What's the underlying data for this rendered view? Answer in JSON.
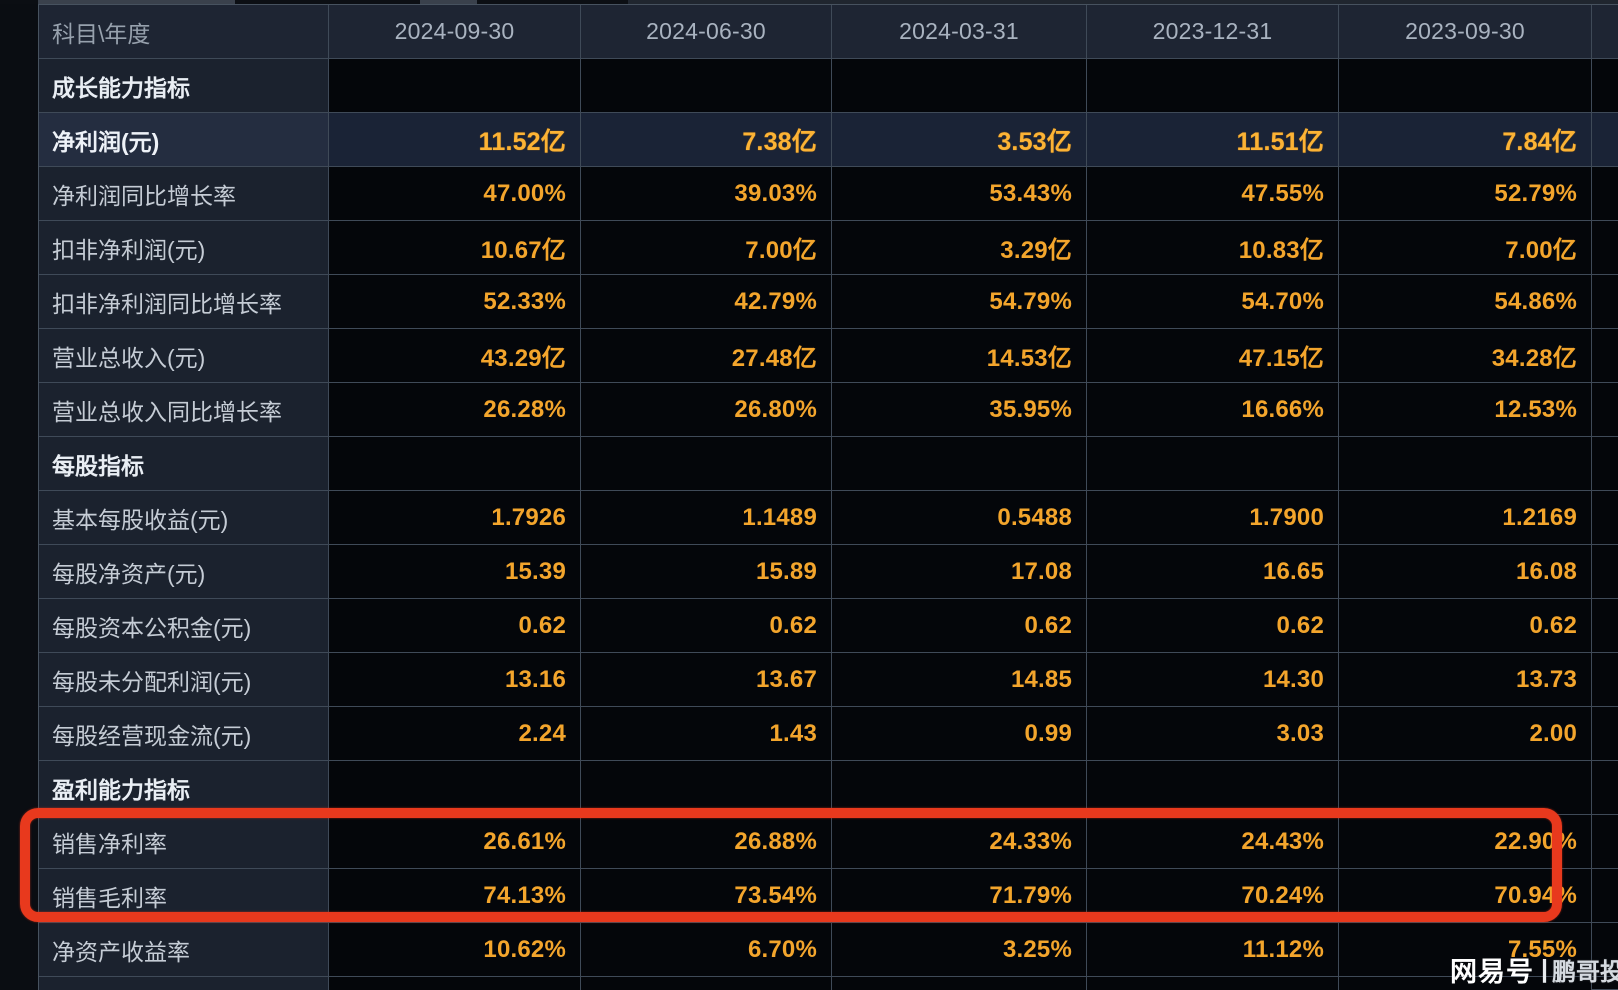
{
  "chart_data": {
    "type": "table",
    "columns": [
      "科目\\年度",
      "2024-09-30",
      "2024-06-30",
      "2024-03-31",
      "2023-12-31",
      "2023-09-30"
    ],
    "rows": [
      [
        "成长能力指标",
        "",
        "",
        "",
        "",
        ""
      ],
      [
        "净利润(元)",
        "11.52亿",
        "7.38亿",
        "3.53亿",
        "11.51亿",
        "7.84亿"
      ],
      [
        "净利润同比增长率",
        "47.00%",
        "39.03%",
        "53.43%",
        "47.55%",
        "52.79%"
      ],
      [
        "扣非净利润(元)",
        "10.67亿",
        "7.00亿",
        "3.29亿",
        "10.83亿",
        "7.00亿"
      ],
      [
        "扣非净利润同比增长率",
        "52.33%",
        "42.79%",
        "54.79%",
        "54.70%",
        "54.86%"
      ],
      [
        "营业总收入(元)",
        "43.29亿",
        "27.48亿",
        "14.53亿",
        "47.15亿",
        "34.28亿"
      ],
      [
        "营业总收入同比增长率",
        "26.28%",
        "26.80%",
        "35.95%",
        "16.66%",
        "12.53%"
      ],
      [
        "每股指标",
        "",
        "",
        "",
        "",
        ""
      ],
      [
        "基本每股收益(元)",
        "1.7926",
        "1.1489",
        "0.5488",
        "1.7900",
        "1.2169"
      ],
      [
        "每股净资产(元)",
        "15.39",
        "15.89",
        "17.08",
        "16.65",
        "16.08"
      ],
      [
        "每股资本公积金(元)",
        "0.62",
        "0.62",
        "0.62",
        "0.62",
        "0.62"
      ],
      [
        "每股未分配利润(元)",
        "13.16",
        "13.67",
        "14.85",
        "14.30",
        "13.73"
      ],
      [
        "每股经营现金流(元)",
        "2.24",
        "1.43",
        "0.99",
        "3.03",
        "2.00"
      ],
      [
        "盈利能力指标",
        "",
        "",
        "",
        "",
        ""
      ],
      [
        "销售净利率",
        "26.61%",
        "26.88%",
        "24.33%",
        "24.43%",
        "22.90%"
      ],
      [
        "销售毛利率",
        "74.13%",
        "73.54%",
        "71.79%",
        "70.24%",
        "70.94%"
      ],
      [
        "净资产收益率",
        "10.62%",
        "6.70%",
        "3.25%",
        "11.12%",
        "7.55%"
      ]
    ],
    "legend_position": "none",
    "grid": true
  },
  "table": {
    "header": {
      "label": "科目\\年度",
      "dates": [
        "2024-09-30",
        "2024-06-30",
        "2024-03-31",
        "2023-12-31",
        "2023-09-30"
      ]
    },
    "rows": [
      {
        "type": "section",
        "name": "section-growth",
        "label": "成长能力指标",
        "values": [
          "",
          "",
          "",
          "",
          ""
        ]
      },
      {
        "type": "highlight",
        "name": "net-profit",
        "label": "净利润(元)",
        "values": [
          "11.52亿",
          "7.38亿",
          "3.53亿",
          "11.51亿",
          "7.84亿"
        ]
      },
      {
        "type": "data",
        "name": "net-profit-yoy",
        "label": "净利润同比增长率",
        "values": [
          "47.00%",
          "39.03%",
          "53.43%",
          "47.55%",
          "52.79%"
        ]
      },
      {
        "type": "data",
        "name": "non-gaap-net-profit",
        "label": "扣非净利润(元)",
        "values": [
          "10.67亿",
          "7.00亿",
          "3.29亿",
          "10.83亿",
          "7.00亿"
        ]
      },
      {
        "type": "data",
        "name": "non-gaap-net-profit-yoy",
        "label": "扣非净利润同比增长率",
        "values": [
          "52.33%",
          "42.79%",
          "54.79%",
          "54.70%",
          "54.86%"
        ]
      },
      {
        "type": "data",
        "name": "total-revenue",
        "label": "营业总收入(元)",
        "values": [
          "43.29亿",
          "27.48亿",
          "14.53亿",
          "47.15亿",
          "34.28亿"
        ]
      },
      {
        "type": "data",
        "name": "total-revenue-yoy",
        "label": "营业总收入同比增长率",
        "values": [
          "26.28%",
          "26.80%",
          "35.95%",
          "16.66%",
          "12.53%"
        ]
      },
      {
        "type": "section",
        "name": "section-per-share",
        "label": "每股指标",
        "values": [
          "",
          "",
          "",
          "",
          ""
        ]
      },
      {
        "type": "data",
        "name": "eps-basic",
        "label": "基本每股收益(元)",
        "values": [
          "1.7926",
          "1.1489",
          "0.5488",
          "1.7900",
          "1.2169"
        ]
      },
      {
        "type": "data",
        "name": "net-asset-per-share",
        "label": "每股净资产(元)",
        "values": [
          "15.39",
          "15.89",
          "17.08",
          "16.65",
          "16.08"
        ]
      },
      {
        "type": "data",
        "name": "capital-reserve-per-share",
        "label": "每股资本公积金(元)",
        "values": [
          "0.62",
          "0.62",
          "0.62",
          "0.62",
          "0.62"
        ]
      },
      {
        "type": "data",
        "name": "retained-profit-per-share",
        "label": "每股未分配利润(元)",
        "values": [
          "13.16",
          "13.67",
          "14.85",
          "14.30",
          "13.73"
        ]
      },
      {
        "type": "data",
        "name": "op-cashflow-per-share",
        "label": "每股经营现金流(元)",
        "values": [
          "2.24",
          "1.43",
          "0.99",
          "3.03",
          "2.00"
        ]
      },
      {
        "type": "section",
        "name": "section-profitability",
        "label": "盈利能力指标",
        "values": [
          "",
          "",
          "",
          "",
          ""
        ]
      },
      {
        "type": "data",
        "name": "net-profit-margin",
        "label": "销售净利率",
        "values": [
          "26.61%",
          "26.88%",
          "24.33%",
          "24.43%",
          "22.90%"
        ]
      },
      {
        "type": "data",
        "name": "gross-profit-margin",
        "label": "销售毛利率",
        "values": [
          "74.13%",
          "73.54%",
          "71.79%",
          "70.24%",
          "70.94%"
        ]
      },
      {
        "type": "data",
        "name": "roe",
        "label": "净资产收益率",
        "values": [
          "10.62%",
          "6.70%",
          "3.25%",
          "11.12%",
          "7.55%"
        ]
      }
    ]
  },
  "annotation": {
    "highlighted_rows": [
      "销售净利率",
      "销售毛利率"
    ],
    "box_color": "#e8391d"
  },
  "watermark": {
    "brand": "网易号",
    "separator": "|",
    "author": "鹏哥投研"
  },
  "colors": {
    "value_orange": "#f3a52c",
    "highlight_orange": "#fcb335",
    "label_bg": "#1b222e",
    "header_bg": "#1e2533",
    "highlight_row_bg": "#1a2336",
    "data_cell_bg": "#04060a",
    "gridline": "#3f4a58",
    "label_text": "#c5ccd5",
    "header_text": "#a9b3c0"
  }
}
